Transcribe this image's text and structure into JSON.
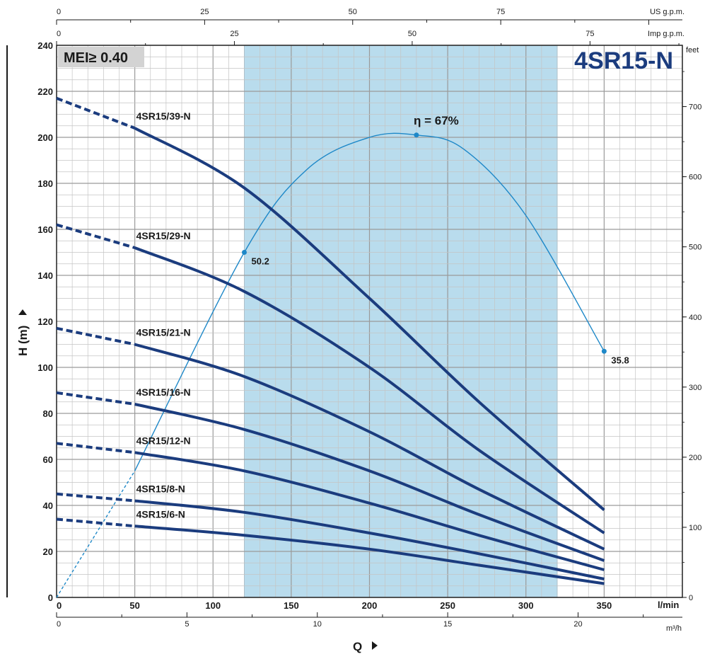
{
  "chart_data": {
    "type": "line",
    "title": "4SR15-N",
    "mei_label": "MEI≥ 0.40",
    "efficiency_label": "η = 67%",
    "x_bottom": {
      "unit": "l/min",
      "range": [
        0,
        400
      ],
      "ticks": [
        0,
        50,
        100,
        150,
        200,
        250,
        300,
        350
      ]
    },
    "x_m3h": {
      "unit": "m³/h",
      "ticks": [
        0,
        5,
        10,
        15,
        20
      ]
    },
    "x_us_gpm": {
      "unit": "US g.p.m.",
      "ticks": [
        0,
        25,
        50,
        75
      ]
    },
    "x_imp_gpm": {
      "unit": "Imp g.p.m.",
      "ticks": [
        0,
        25,
        50,
        75
      ]
    },
    "y_left": {
      "label": "H (m)",
      "range": [
        0,
        240
      ],
      "ticks": [
        0,
        20,
        40,
        60,
        80,
        100,
        120,
        140,
        160,
        180,
        200,
        220,
        240
      ]
    },
    "y_right": {
      "unit": "feet",
      "ticks": [
        0,
        100,
        200,
        300,
        400,
        500,
        600,
        700
      ]
    },
    "x_axis_label": "Q",
    "operating_range_lpm": [
      120,
      320
    ],
    "series": [
      {
        "name": "4SR15/39-N",
        "dashed_x": [
          0,
          50
        ],
        "dashed_y": [
          217,
          204
        ],
        "x": [
          50,
          120,
          200,
          270,
          350
        ],
        "y": [
          204,
          178,
          130,
          85,
          38
        ]
      },
      {
        "name": "4SR15/29-N",
        "dashed_x": [
          0,
          50
        ],
        "dashed_y": [
          162,
          152
        ],
        "x": [
          50,
          120,
          200,
          270,
          350
        ],
        "y": [
          152,
          133,
          100,
          64,
          28
        ]
      },
      {
        "name": "4SR15/21-N",
        "dashed_x": [
          0,
          50
        ],
        "dashed_y": [
          117,
          110
        ],
        "x": [
          50,
          120,
          200,
          270,
          350
        ],
        "y": [
          110,
          96,
          72,
          47,
          21
        ]
      },
      {
        "name": "4SR15/16-N",
        "dashed_x": [
          0,
          50
        ],
        "dashed_y": [
          89,
          84
        ],
        "x": [
          50,
          120,
          200,
          270,
          350
        ],
        "y": [
          84,
          73,
          55,
          36,
          16
        ]
      },
      {
        "name": "4SR15/12-N",
        "dashed_x": [
          0,
          50
        ],
        "dashed_y": [
          67,
          63
        ],
        "x": [
          50,
          120,
          200,
          270,
          350
        ],
        "y": [
          63,
          55,
          41,
          27,
          12
        ]
      },
      {
        "name": "4SR15/8-N",
        "dashed_x": [
          0,
          50
        ],
        "dashed_y": [
          45,
          42
        ],
        "x": [
          50,
          120,
          200,
          270,
          350
        ],
        "y": [
          42,
          37,
          28,
          19,
          8
        ]
      },
      {
        "name": "4SR15/6-N",
        "dashed_x": [
          0,
          50
        ],
        "dashed_y": [
          34,
          31
        ],
        "x": [
          50,
          120,
          200,
          270,
          350
        ],
        "y": [
          31,
          27,
          21,
          14,
          6
        ]
      }
    ],
    "efficiency": {
      "dashed_x": [
        0,
        50
      ],
      "dashed_y": [
        0,
        55
      ],
      "x": [
        50,
        120,
        160,
        200,
        230,
        260,
        300,
        350
      ],
      "y": [
        55,
        150,
        186,
        200,
        201,
        195,
        166,
        107
      ],
      "points": [
        {
          "x": 120,
          "y": 150,
          "label": "50.2"
        },
        {
          "x": 230,
          "y": 201,
          "label": ""
        },
        {
          "x": 350,
          "y": 107,
          "label": "35.8"
        }
      ]
    },
    "colors": {
      "curve": "#1b3c7e",
      "efficiency": "#1e88c8",
      "band": "#b9dced",
      "grid": "#c4c4c4",
      "title": "#1b3c7e",
      "mei_box": "#d3d3d3"
    }
  }
}
